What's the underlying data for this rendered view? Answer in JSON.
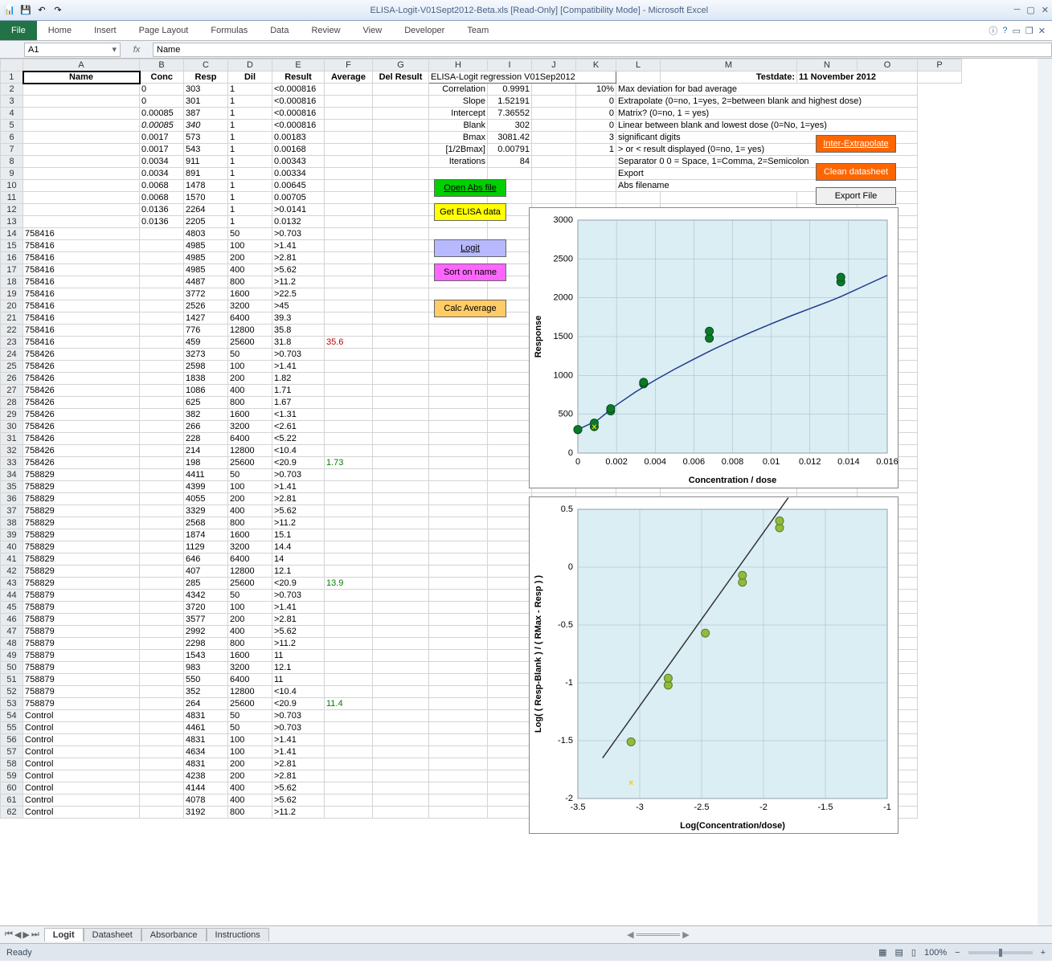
{
  "window": {
    "title": "ELISA-Logit-V01Sept2012-Beta.xls  [Read-Only]   [Compatibility Mode]  -  Microsoft Excel"
  },
  "ribbon": {
    "file": "File",
    "tabs": [
      "Home",
      "Insert",
      "Page Layout",
      "Formulas",
      "Data",
      "Review",
      "View",
      "Developer",
      "Team"
    ]
  },
  "formula": {
    "namebox": "A1",
    "fx": "fx",
    "value": "Name"
  },
  "columns": [
    "A",
    "B",
    "C",
    "D",
    "E",
    "F",
    "G",
    "H",
    "I",
    "J",
    "K",
    "L",
    "M",
    "N",
    "O",
    "P"
  ],
  "headers": {
    "A": "Name",
    "B": "Conc",
    "C": "Resp",
    "D": "Dil",
    "E": "Result",
    "F": "Average",
    "G": "Del Result"
  },
  "info": {
    "title": "ELISA-Logit regression V01Sep2012",
    "testdate_lbl": "Testdate:",
    "testdate": "11 November 2012",
    "rows": [
      {
        "lbl": "Correlation",
        "val": "0.9991",
        "p": "10%",
        "txt": "Max deviation for bad average"
      },
      {
        "lbl": "Slope",
        "val": "1.52191",
        "p": "0",
        "txt": "Extrapolate (0=no, 1=yes, 2=between blank and highest dose)"
      },
      {
        "lbl": "Intercept",
        "val": "7.36552",
        "p": "0",
        "txt": "Matrix? (0=no, 1 = yes)"
      },
      {
        "lbl": "Blank",
        "val": "302",
        "p": "0",
        "txt": "Linear between blank and lowest dose (0=No, 1=yes)"
      },
      {
        "lbl": "Bmax",
        "val": "3081.42",
        "p": "3",
        "txt": "significant digits"
      },
      {
        "lbl": "[1/2Bmax]",
        "val": "0.00791",
        "p": "1",
        "txt": "> or < result displayed (0=no, 1= yes)"
      },
      {
        "lbl": "Iterations",
        "val": "84",
        "p": "",
        "txt": "Separator          0        0 = Space, 1=Comma, 2=Semicolon"
      },
      {
        "lbl": "",
        "val": "",
        "p": "",
        "txt": "Export"
      },
      {
        "lbl": "",
        "val": "",
        "p": "",
        "txt": "Abs filename"
      }
    ]
  },
  "buttons": {
    "openabs": "Open Abs file",
    "getelisa": "Get ELISA data",
    "logit": "Logit",
    "sort": "Sort on name",
    "calc": "Calc Average",
    "inter": "Inter-Extrapolate",
    "clean": "Clean datasheet",
    "export": "Export File"
  },
  "data": [
    {
      "n": "",
      "c": "0",
      "r": "303",
      "d": "1",
      "res": "<0.000816"
    },
    {
      "n": "",
      "c": "0",
      "r": "301",
      "d": "1",
      "res": "<0.000816"
    },
    {
      "n": "",
      "c": "0.00085",
      "r": "387",
      "d": "1",
      "res": "<0.000816"
    },
    {
      "n": "",
      "c": "0.00085",
      "r": "340",
      "d": "1",
      "res": "<0.000816",
      "it": true
    },
    {
      "n": "",
      "c": "0.0017",
      "r": "573",
      "d": "1",
      "res": "0.00183"
    },
    {
      "n": "",
      "c": "0.0017",
      "r": "543",
      "d": "1",
      "res": "0.00168"
    },
    {
      "n": "",
      "c": "0.0034",
      "r": "911",
      "d": "1",
      "res": "0.00343"
    },
    {
      "n": "",
      "c": "0.0034",
      "r": "891",
      "d": "1",
      "res": "0.00334"
    },
    {
      "n": "",
      "c": "0.0068",
      "r": "1478",
      "d": "1",
      "res": "0.00645"
    },
    {
      "n": "",
      "c": "0.0068",
      "r": "1570",
      "d": "1",
      "res": "0.00705"
    },
    {
      "n": "",
      "c": "0.0136",
      "r": "2264",
      "d": "1",
      "res": ">0.0141"
    },
    {
      "n": "",
      "c": "0.0136",
      "r": "2205",
      "d": "1",
      "res": "0.0132"
    },
    {
      "n": "758416",
      "r": "4803",
      "d": "50",
      "res": ">0.703"
    },
    {
      "n": "758416",
      "r": "4985",
      "d": "100",
      "res": ">1.41"
    },
    {
      "n": "758416",
      "r": "4985",
      "d": "200",
      "res": ">2.81"
    },
    {
      "n": "758416",
      "r": "4985",
      "d": "400",
      "res": ">5.62"
    },
    {
      "n": "758416",
      "r": "4487",
      "d": "800",
      "res": ">11.2"
    },
    {
      "n": "758416",
      "r": "3772",
      "d": "1600",
      "res": ">22.5"
    },
    {
      "n": "758416",
      "r": "2526",
      "d": "3200",
      "res": ">45"
    },
    {
      "n": "758416",
      "r": "1427",
      "d": "6400",
      "res": "39.3"
    },
    {
      "n": "758416",
      "r": "776",
      "d": "12800",
      "res": "35.8"
    },
    {
      "n": "758416",
      "r": "459",
      "d": "25600",
      "res": "31.8",
      "avg": "35.6",
      "avgc": "red"
    },
    {
      "n": "758426",
      "r": "3273",
      "d": "50",
      "res": ">0.703"
    },
    {
      "n": "758426",
      "r": "2598",
      "d": "100",
      "res": ">1.41"
    },
    {
      "n": "758426",
      "r": "1838",
      "d": "200",
      "res": "1.82"
    },
    {
      "n": "758426",
      "r": "1086",
      "d": "400",
      "res": "1.71"
    },
    {
      "n": "758426",
      "r": "625",
      "d": "800",
      "res": "1.67"
    },
    {
      "n": "758426",
      "r": "382",
      "d": "1600",
      "res": "<1.31"
    },
    {
      "n": "758426",
      "r": "266",
      "d": "3200",
      "res": "<2.61"
    },
    {
      "n": "758426",
      "r": "228",
      "d": "6400",
      "res": "<5.22"
    },
    {
      "n": "758426",
      "r": "214",
      "d": "12800",
      "res": "<10.4"
    },
    {
      "n": "758426",
      "r": "198",
      "d": "25600",
      "res": "<20.9",
      "avg": "1.73",
      "avgc": "green"
    },
    {
      "n": "758829",
      "r": "4411",
      "d": "50",
      "res": ">0.703"
    },
    {
      "n": "758829",
      "r": "4399",
      "d": "100",
      "res": ">1.41"
    },
    {
      "n": "758829",
      "r": "4055",
      "d": "200",
      "res": ">2.81"
    },
    {
      "n": "758829",
      "r": "3329",
      "d": "400",
      "res": ">5.62"
    },
    {
      "n": "758829",
      "r": "2568",
      "d": "800",
      "res": ">11.2"
    },
    {
      "n": "758829",
      "r": "1874",
      "d": "1600",
      "res": "15.1"
    },
    {
      "n": "758829",
      "r": "1129",
      "d": "3200",
      "res": "14.4"
    },
    {
      "n": "758829",
      "r": "646",
      "d": "6400",
      "res": "14"
    },
    {
      "n": "758829",
      "r": "407",
      "d": "12800",
      "res": "12.1"
    },
    {
      "n": "758829",
      "r": "285",
      "d": "25600",
      "res": "<20.9",
      "avg": "13.9",
      "avgc": "green"
    },
    {
      "n": "758879",
      "r": "4342",
      "d": "50",
      "res": ">0.703"
    },
    {
      "n": "758879",
      "r": "3720",
      "d": "100",
      "res": ">1.41"
    },
    {
      "n": "758879",
      "r": "3577",
      "d": "200",
      "res": ">2.81"
    },
    {
      "n": "758879",
      "r": "2992",
      "d": "400",
      "res": ">5.62"
    },
    {
      "n": "758879",
      "r": "2298",
      "d": "800",
      "res": ">11.2"
    },
    {
      "n": "758879",
      "r": "1543",
      "d": "1600",
      "res": "11"
    },
    {
      "n": "758879",
      "r": "983",
      "d": "3200",
      "res": "12.1"
    },
    {
      "n": "758879",
      "r": "550",
      "d": "6400",
      "res": "11"
    },
    {
      "n": "758879",
      "r": "352",
      "d": "12800",
      "res": "<10.4"
    },
    {
      "n": "758879",
      "r": "264",
      "d": "25600",
      "res": "<20.9",
      "avg": "11.4",
      "avgc": "green"
    },
    {
      "n": "Control",
      "r": "4831",
      "d": "50",
      "res": ">0.703"
    },
    {
      "n": "Control",
      "r": "4461",
      "d": "50",
      "res": ">0.703"
    },
    {
      "n": "Control",
      "r": "4831",
      "d": "100",
      "res": ">1.41"
    },
    {
      "n": "Control",
      "r": "4634",
      "d": "100",
      "res": ">1.41"
    },
    {
      "n": "Control",
      "r": "4831",
      "d": "200",
      "res": ">2.81"
    },
    {
      "n": "Control",
      "r": "4238",
      "d": "200",
      "res": ">2.81"
    },
    {
      "n": "Control",
      "r": "4144",
      "d": "400",
      "res": ">5.62"
    },
    {
      "n": "Control",
      "r": "4078",
      "d": "400",
      "res": ">5.62"
    },
    {
      "n": "Control",
      "r": "3192",
      "d": "800",
      "res": ">11.2"
    }
  ],
  "chart1": {
    "title": "",
    "xlabel": "Concentration / dose",
    "ylabel": "Response",
    "xlim": [
      0,
      0.016
    ],
    "ylim": [
      0,
      3000
    ],
    "xticks": [
      0,
      0.002,
      0.004,
      0.006,
      0.008,
      0.01,
      0.012,
      0.014,
      0.016
    ],
    "yticks": [
      0,
      500,
      1000,
      1500,
      2000,
      2500,
      3000
    ],
    "bg": "#dbeef4",
    "grid": "#9db6c7",
    "line": "#1f3b8e",
    "marker": "#0a7a2a",
    "marker_edge": "#054d1a",
    "curve": [
      [
        0,
        302
      ],
      [
        0.001,
        420
      ],
      [
        0.002,
        620
      ],
      [
        0.003,
        790
      ],
      [
        0.004,
        940
      ],
      [
        0.005,
        1080
      ],
      [
        0.006,
        1210
      ],
      [
        0.007,
        1335
      ],
      [
        0.008,
        1450
      ],
      [
        0.009,
        1560
      ],
      [
        0.01,
        1665
      ],
      [
        0.011,
        1765
      ],
      [
        0.012,
        1860
      ],
      [
        0.013,
        1955
      ],
      [
        0.0136,
        2015
      ],
      [
        0.014,
        2060
      ],
      [
        0.015,
        2175
      ],
      [
        0.016,
        2290
      ]
    ],
    "points": [
      [
        0,
        302
      ],
      [
        0,
        303
      ],
      [
        0.00085,
        340
      ],
      [
        0.00085,
        387
      ],
      [
        0.0017,
        543
      ],
      [
        0.0017,
        573
      ],
      [
        0.0034,
        891
      ],
      [
        0.0034,
        911
      ],
      [
        0.0068,
        1478
      ],
      [
        0.0068,
        1570
      ],
      [
        0.0136,
        2205
      ],
      [
        0.0136,
        2264
      ]
    ],
    "outlier": [
      0.00085,
      340
    ]
  },
  "chart2": {
    "xlabel": "Log(Concentration/dose)",
    "ylabel": "Log( ( Resp-Blank ) / ( RMax - Resp ) )",
    "xlim": [
      -3.5,
      -1.0
    ],
    "ylim": [
      -2.0,
      0.5
    ],
    "xticks": [
      -3.5,
      -3.0,
      -2.5,
      -2.0,
      -1.5,
      -1.0
    ],
    "yticks": [
      -2.0,
      -1.5,
      -1.0,
      -0.5,
      0.0,
      0.5
    ],
    "bg": "#dbeef4",
    "grid": "#9db6c7",
    "line": "#333",
    "marker": "#8fbc3f",
    "marker_edge": "#5a7a1f",
    "linepts": [
      [
        -3.3,
        -1.65
      ],
      [
        -1.8,
        0.6
      ]
    ],
    "points": [
      [
        -3.07,
        -1.51
      ],
      [
        -2.77,
        -1.02
      ],
      [
        -2.77,
        -0.96
      ],
      [
        -2.47,
        -0.57
      ],
      [
        -2.17,
        -0.13
      ],
      [
        -2.17,
        -0.07
      ],
      [
        -1.87,
        0.34
      ],
      [
        -1.87,
        0.4
      ]
    ],
    "outlier": [
      -3.07,
      -1.86
    ]
  },
  "sheets": [
    "Logit",
    "Datasheet",
    "Absorbance",
    "Instructions"
  ],
  "status": {
    "ready": "Ready",
    "zoom": "100%"
  }
}
